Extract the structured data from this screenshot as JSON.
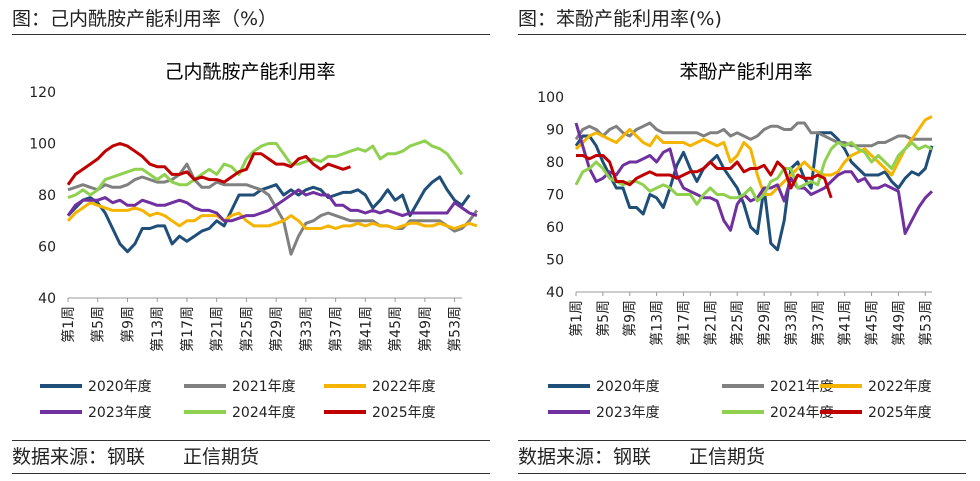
{
  "left": {
    "header": "图：己内酰胺产能利用率（%）",
    "footer_source": "数据来源：钢联",
    "footer_brand": "正信期货"
  },
  "right": {
    "header": "图：苯酚产能利用率(%)",
    "footer_source": "数据来源：钢联",
    "footer_brand": "正信期货"
  },
  "chart_data": [
    {
      "type": "line",
      "title": "己内酰胺产能利用率",
      "ylim": [
        40,
        120
      ],
      "yticks": [
        40,
        60,
        80,
        100,
        120
      ],
      "x_tick_labels": [
        "第1周",
        "第5周",
        "第9周",
        "第13周",
        "第17周",
        "第21周",
        "第25周",
        "第29周",
        "第33周",
        "第37周",
        "第41周",
        "第45周",
        "第49周",
        "第53周"
      ],
      "grid": false,
      "legend_position": "bottom",
      "series": [
        {
          "name": "2020年度",
          "color": "#1f4e79",
          "values": [
            72,
            75,
            78,
            79,
            77,
            73,
            67,
            61,
            58,
            61,
            67,
            67,
            68,
            68,
            61,
            64,
            62,
            64,
            66,
            67,
            70,
            68,
            74,
            80,
            80,
            80,
            82,
            83,
            84,
            80,
            82,
            80,
            82,
            83,
            82,
            79,
            80,
            81,
            81,
            82,
            80,
            75,
            78,
            82,
            78,
            80,
            72,
            77,
            82,
            85,
            87,
            82,
            78,
            76,
            80
          ]
        },
        {
          "name": "2021年度",
          "color": "#808080",
          "values": [
            82,
            83,
            84,
            83,
            82,
            84,
            83,
            83,
            84,
            86,
            87,
            86,
            85,
            85,
            86,
            88,
            92,
            86,
            83,
            83,
            85,
            84,
            84,
            84,
            84,
            83,
            82,
            80,
            75,
            70,
            57,
            64,
            69,
            70,
            72,
            73,
            72,
            71,
            70,
            70,
            70,
            70,
            68,
            68,
            67,
            67,
            70,
            70,
            70,
            70,
            70,
            68,
            66,
            67,
            70,
            74
          ]
        },
        {
          "name": "2022年度",
          "color": "#f5b400",
          "values": [
            70,
            73,
            75,
            77,
            76,
            75,
            74,
            74,
            74,
            75,
            74,
            72,
            73,
            72,
            70,
            68,
            70,
            70,
            72,
            72,
            72,
            70,
            72,
            73,
            70,
            68,
            68,
            68,
            69,
            70,
            72,
            70,
            67,
            67,
            67,
            68,
            67,
            68,
            68,
            69,
            68,
            69,
            68,
            68,
            67,
            68,
            69,
            69,
            68,
            68,
            69,
            68,
            67,
            68,
            69,
            68
          ]
        },
        {
          "name": "2023年度",
          "color": "#7030a0",
          "values": [
            72,
            76,
            78,
            78,
            78,
            79,
            77,
            78,
            76,
            76,
            78,
            77,
            76,
            76,
            77,
            78,
            77,
            75,
            74,
            74,
            73,
            70,
            70,
            71,
            72,
            72,
            73,
            74,
            76,
            78,
            80,
            82,
            80,
            81,
            80,
            80,
            76,
            76,
            74,
            74,
            73,
            74,
            73,
            74,
            73,
            72,
            73,
            73,
            73,
            73,
            73,
            73,
            77,
            75,
            73,
            72
          ]
        },
        {
          "name": "2024年度",
          "color": "#8fd14f",
          "values": [
            79,
            80,
            82,
            80,
            82,
            86,
            87,
            88,
            89,
            90,
            90,
            88,
            86,
            88,
            85,
            84,
            84,
            86,
            88,
            90,
            88,
            92,
            91,
            88,
            94,
            97,
            99,
            100,
            100,
            96,
            92,
            92,
            93,
            94,
            93,
            95,
            95,
            96,
            97,
            98,
            97,
            99,
            94,
            96,
            96,
            97,
            99,
            100,
            101,
            99,
            98,
            96,
            92,
            88
          ]
        },
        {
          "name": "2025年度",
          "color": "#c00000",
          "values": [
            84,
            88,
            90,
            92,
            94,
            97,
            99,
            100,
            99,
            97,
            95,
            92,
            91,
            91,
            88,
            88,
            89,
            86,
            87,
            86,
            86,
            85,
            87,
            89,
            90,
            96,
            96,
            94,
            92,
            92,
            91,
            94,
            95,
            92,
            90,
            92,
            91,
            90,
            91
          ]
        }
      ]
    },
    {
      "type": "line",
      "title": "苯酚产能利用率",
      "ylim": [
        40,
        100
      ],
      "yticks": [
        40,
        50,
        60,
        70,
        80,
        90,
        100
      ],
      "x_tick_labels": [
        "第1周",
        "第5周",
        "第9周",
        "第13周",
        "第17周",
        "第21周",
        "第25周",
        "第29周",
        "第33周",
        "第37周",
        "第41周",
        "第45周",
        "第49周",
        "第53周"
      ],
      "grid": false,
      "legend_position": "bottom",
      "series": [
        {
          "name": "2020年度",
          "color": "#1f4e79",
          "values": [
            85,
            88,
            88,
            85,
            80,
            76,
            72,
            72,
            66,
            66,
            64,
            70,
            69,
            66,
            72,
            79,
            83,
            78,
            74,
            78,
            80,
            82,
            78,
            75,
            72,
            67,
            60,
            58,
            72,
            55,
            53,
            62,
            78,
            80,
            75,
            72,
            89,
            89,
            89,
            87,
            84,
            80,
            78,
            76,
            76,
            76,
            77,
            74,
            72,
            75,
            77,
            76,
            78,
            85
          ]
        },
        {
          "name": "2021年度",
          "color": "#808080",
          "values": [
            87,
            90,
            91,
            90,
            88,
            90,
            91,
            89,
            88,
            90,
            91,
            92,
            90,
            89,
            89,
            89,
            89,
            89,
            89,
            88,
            89,
            89,
            90,
            88,
            89,
            88,
            87,
            88,
            90,
            91,
            91,
            90,
            90,
            92,
            92,
            89,
            89,
            88,
            87,
            86,
            86,
            85,
            85,
            85,
            85,
            86,
            86,
            87,
            88,
            88,
            87,
            87,
            87,
            87
          ]
        },
        {
          "name": "2022年度",
          "color": "#f5b400",
          "values": [
            84,
            86,
            88,
            89,
            88,
            87,
            86,
            88,
            90,
            88,
            86,
            85,
            88,
            86,
            86,
            86,
            86,
            85,
            86,
            87,
            86,
            85,
            86,
            80,
            82,
            86,
            84,
            76,
            70,
            70,
            72,
            74,
            76,
            78,
            80,
            78,
            77,
            76,
            76,
            77,
            80,
            82,
            83,
            84,
            82,
            80,
            78,
            76,
            80,
            84,
            87,
            90,
            93,
            94
          ]
        },
        {
          "name": "2023年度",
          "color": "#7030a0",
          "values": [
            92,
            85,
            78,
            74,
            75,
            77,
            76,
            79,
            80,
            80,
            81,
            82,
            80,
            83,
            84,
            76,
            72,
            71,
            70,
            69,
            69,
            68,
            62,
            59,
            67,
            70,
            68,
            69,
            72,
            72,
            73,
            68,
            75,
            72,
            72,
            70,
            71,
            72,
            74,
            76,
            77,
            77,
            74,
            75,
            72,
            72,
            73,
            72,
            71,
            58,
            62,
            66,
            69,
            71
          ]
        },
        {
          "name": "2024年度",
          "color": "#8fd14f",
          "values": [
            73,
            77,
            78,
            80,
            78,
            75,
            74,
            73,
            74,
            74,
            73,
            71,
            72,
            73,
            72,
            70,
            70,
            70,
            67,
            70,
            72,
            70,
            70,
            69,
            69,
            70,
            72,
            68,
            70,
            74,
            75,
            78,
            78,
            72,
            73,
            74,
            73,
            80,
            84,
            86,
            85,
            86,
            84,
            83,
            80,
            82,
            80,
            78,
            82,
            84,
            86,
            84,
            85,
            84
          ]
        },
        {
          "name": "2025年度",
          "color": "#c00000",
          "values": [
            82,
            82,
            81,
            82,
            82,
            80,
            74,
            74,
            73,
            75,
            76,
            77,
            76,
            76,
            76,
            75,
            76,
            77,
            77,
            78,
            80,
            78,
            78,
            78,
            80,
            77,
            78,
            78,
            79,
            76,
            80,
            78,
            72,
            76,
            75,
            75,
            76,
            75,
            69
          ]
        }
      ]
    }
  ]
}
